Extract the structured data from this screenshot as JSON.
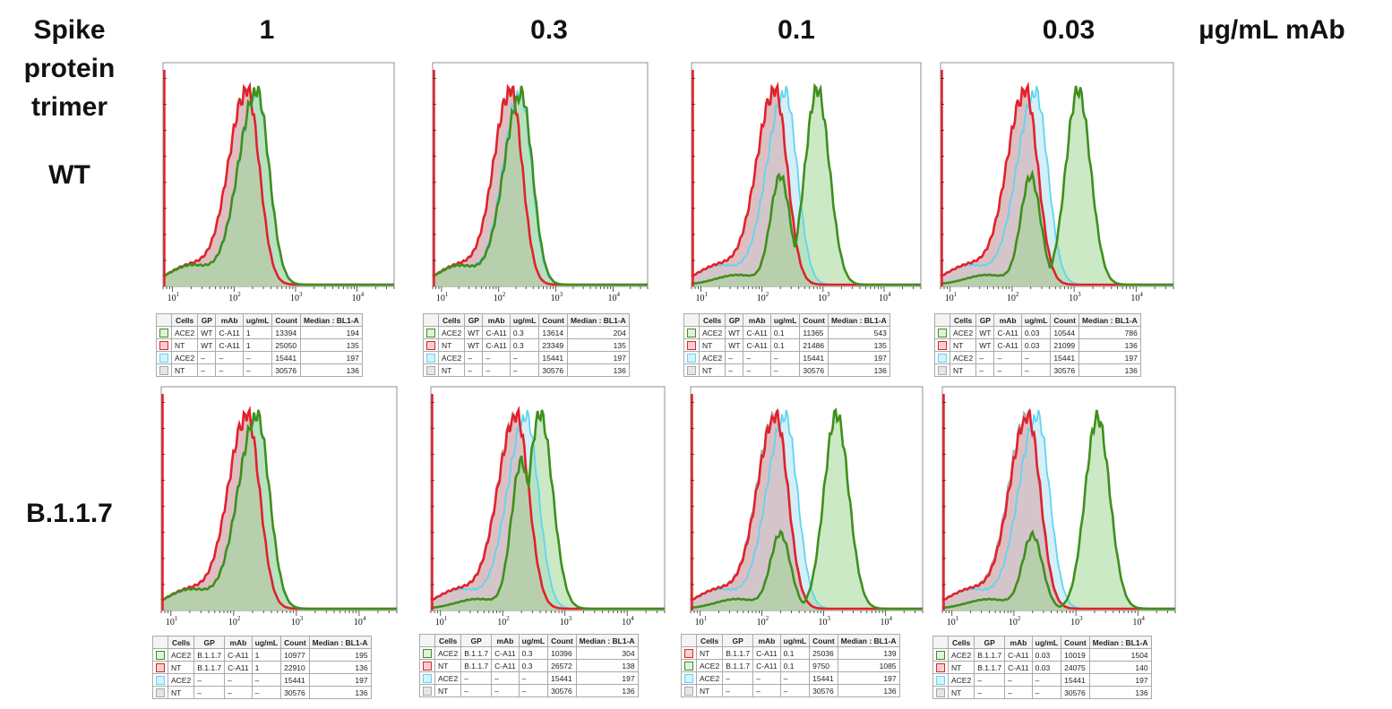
{
  "row_header": {
    "line1": "Spike",
    "line2": "protein",
    "line3": "trimer"
  },
  "row_labels": [
    "WT",
    "B.1.1.7"
  ],
  "column_labels": [
    "1",
    "0.3",
    "0.1",
    "0.03"
  ],
  "unit_label": "µg/mL mAb",
  "table_headers": [
    "Cells",
    "GP",
    "mAb",
    "ug/mL",
    "Count",
    "Median : BL1-A"
  ],
  "x_tick_labels": [
    "10",
    "10",
    "10",
    "10"
  ],
  "x_tick_exponents": [
    "1",
    "2",
    "3",
    "4"
  ],
  "colors": {
    "ACE2_stained": "#3f8f1c",
    "NT_stained": "#e3202b",
    "ACE2_unstained": "#5fd4f2",
    "NT_unstained": "#b5b5b5"
  },
  "chart_data": [
    {
      "type": "histogram",
      "row": "WT",
      "concentration": "1",
      "xscale": "log",
      "xlim": [
        7,
        40000
      ],
      "series": [
        {
          "cells": "ACE2",
          "gp": "WT",
          "mab": "C-A11",
          "ugml": "1",
          "count": "13394",
          "median": "194",
          "color": "green"
        },
        {
          "cells": "NT",
          "gp": "WT",
          "mab": "C-A11",
          "ugml": "1",
          "count": "25050",
          "median": "135",
          "color": "red"
        },
        {
          "cells": "ACE2",
          "gp": "–",
          "mab": "–",
          "ugml": "–",
          "count": "15441",
          "median": "197",
          "color": "cyan"
        },
        {
          "cells": "NT",
          "gp": "–",
          "mab": "–",
          "ugml": "–",
          "count": "30576",
          "median": "136",
          "color": "grey"
        }
      ]
    },
    {
      "type": "histogram",
      "row": "WT",
      "concentration": "0.3",
      "xscale": "log",
      "xlim": [
        7,
        40000
      ],
      "series": [
        {
          "cells": "ACE2",
          "gp": "WT",
          "mab": "C-A11",
          "ugml": "0.3",
          "count": "13614",
          "median": "204",
          "color": "green"
        },
        {
          "cells": "NT",
          "gp": "WT",
          "mab": "C-A11",
          "ugml": "0.3",
          "count": "23349",
          "median": "135",
          "color": "red"
        },
        {
          "cells": "ACE2",
          "gp": "–",
          "mab": "–",
          "ugml": "–",
          "count": "15441",
          "median": "197",
          "color": "cyan"
        },
        {
          "cells": "NT",
          "gp": "–",
          "mab": "–",
          "ugml": "–",
          "count": "30576",
          "median": "136",
          "color": "grey"
        }
      ]
    },
    {
      "type": "histogram",
      "row": "WT",
      "concentration": "0.1",
      "xscale": "log",
      "xlim": [
        7,
        40000
      ],
      "series": [
        {
          "cells": "ACE2",
          "gp": "WT",
          "mab": "C-A11",
          "ugml": "0.1",
          "count": "11365",
          "median": "543",
          "color": "green"
        },
        {
          "cells": "NT",
          "gp": "WT",
          "mab": "C-A11",
          "ugml": "0.1",
          "count": "21486",
          "median": "135",
          "color": "red"
        },
        {
          "cells": "ACE2",
          "gp": "–",
          "mab": "–",
          "ugml": "–",
          "count": "15441",
          "median": "197",
          "color": "cyan"
        },
        {
          "cells": "NT",
          "gp": "–",
          "mab": "–",
          "ugml": "–",
          "count": "30576",
          "median": "136",
          "color": "grey"
        }
      ]
    },
    {
      "type": "histogram",
      "row": "WT",
      "concentration": "0.03",
      "xscale": "log",
      "xlim": [
        7,
        40000
      ],
      "series": [
        {
          "cells": "ACE2",
          "gp": "WT",
          "mab": "C-A11",
          "ugml": "0.03",
          "count": "10544",
          "median": "786",
          "color": "green"
        },
        {
          "cells": "NT",
          "gp": "WT",
          "mab": "C-A11",
          "ugml": "0.03",
          "count": "21099",
          "median": "136",
          "color": "red"
        },
        {
          "cells": "ACE2",
          "gp": "–",
          "mab": "–",
          "ugml": "–",
          "count": "15441",
          "median": "197",
          "color": "cyan"
        },
        {
          "cells": "NT",
          "gp": "–",
          "mab": "–",
          "ugml": "–",
          "count": "30576",
          "median": "136",
          "color": "grey"
        }
      ]
    },
    {
      "type": "histogram",
      "row": "B.1.1.7",
      "concentration": "1",
      "xscale": "log",
      "xlim": [
        7,
        40000
      ],
      "series": [
        {
          "cells": "ACE2",
          "gp": "B.1.1.7",
          "mab": "C-A11",
          "ugml": "1",
          "count": "10977",
          "median": "195",
          "color": "green"
        },
        {
          "cells": "NT",
          "gp": "B.1.1.7",
          "mab": "C-A11",
          "ugml": "1",
          "count": "22910",
          "median": "136",
          "color": "red"
        },
        {
          "cells": "ACE2",
          "gp": "–",
          "mab": "–",
          "ugml": "–",
          "count": "15441",
          "median": "197",
          "color": "cyan"
        },
        {
          "cells": "NT",
          "gp": "–",
          "mab": "–",
          "ugml": "–",
          "count": "30576",
          "median": "136",
          "color": "grey"
        }
      ]
    },
    {
      "type": "histogram",
      "row": "B.1.1.7",
      "concentration": "0.3",
      "xscale": "log",
      "xlim": [
        7,
        40000
      ],
      "series": [
        {
          "cells": "ACE2",
          "gp": "B.1.1.7",
          "mab": "C-A11",
          "ugml": "0.3",
          "count": "10396",
          "median": "304",
          "color": "green"
        },
        {
          "cells": "NT",
          "gp": "B.1.1.7",
          "mab": "C-A11",
          "ugml": "0.3",
          "count": "26572",
          "median": "138",
          "color": "red"
        },
        {
          "cells": "ACE2",
          "gp": "–",
          "mab": "–",
          "ugml": "–",
          "count": "15441",
          "median": "197",
          "color": "cyan"
        },
        {
          "cells": "NT",
          "gp": "–",
          "mab": "–",
          "ugml": "–",
          "count": "30576",
          "median": "136",
          "color": "grey"
        }
      ]
    },
    {
      "type": "histogram",
      "row": "B.1.1.7",
      "concentration": "0.1",
      "xscale": "log",
      "xlim": [
        7,
        40000
      ],
      "series": [
        {
          "cells": "NT",
          "gp": "B.1.1.7",
          "mab": "C-A11",
          "ugml": "0.1",
          "count": "25036",
          "median": "139",
          "color": "red"
        },
        {
          "cells": "ACE2",
          "gp": "B.1.1.7",
          "mab": "C-A11",
          "ugml": "0.1",
          "count": "9750",
          "median": "1085",
          "color": "green"
        },
        {
          "cells": "ACE2",
          "gp": "–",
          "mab": "–",
          "ugml": "–",
          "count": "15441",
          "median": "197",
          "color": "cyan"
        },
        {
          "cells": "NT",
          "gp": "–",
          "mab": "–",
          "ugml": "–",
          "count": "30576",
          "median": "136",
          "color": "grey"
        }
      ]
    },
    {
      "type": "histogram",
      "row": "B.1.1.7",
      "concentration": "0.03",
      "xscale": "log",
      "xlim": [
        7,
        40000
      ],
      "series": [
        {
          "cells": "ACE2",
          "gp": "B.1.1.7",
          "mab": "C-A11",
          "ugml": "0.03",
          "count": "10019",
          "median": "1504",
          "color": "green"
        },
        {
          "cells": "NT",
          "gp": "B.1.1.7",
          "mab": "C-A11",
          "ugml": "0.03",
          "count": "24075",
          "median": "140",
          "color": "red"
        },
        {
          "cells": "ACE2",
          "gp": "–",
          "mab": "–",
          "ugml": "–",
          "count": "15441",
          "median": "197",
          "color": "cyan"
        },
        {
          "cells": "NT",
          "gp": "–",
          "mab": "–",
          "ugml": "–",
          "count": "30576",
          "median": "136",
          "color": "grey"
        }
      ]
    }
  ]
}
